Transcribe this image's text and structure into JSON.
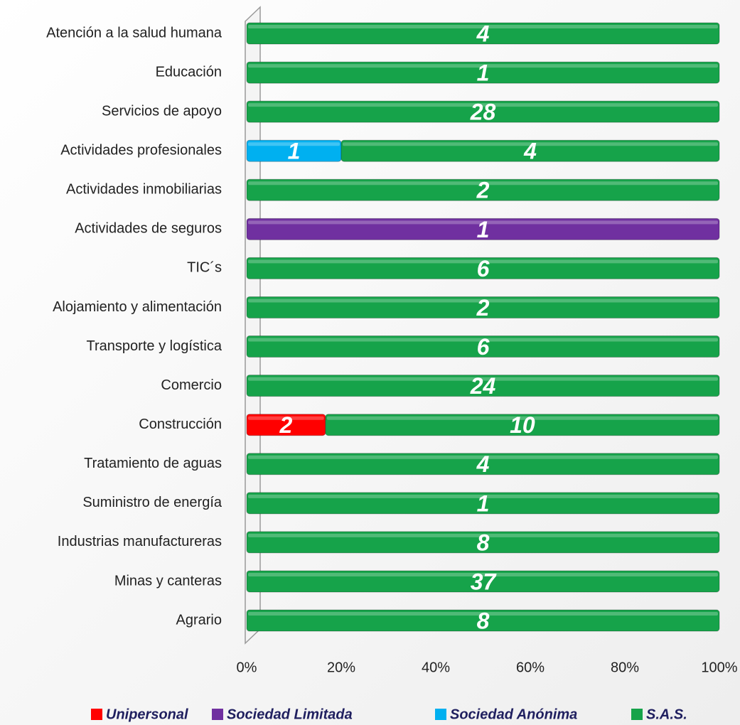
{
  "chart_data": {
    "type": "stacked_percent_bar",
    "categories": [
      "Atención a la salud humana",
      "Educación",
      "Servicios de apoyo",
      "Actividades profesionales",
      "Actividades inmobiliarias",
      "Actividades de seguros",
      "TIC´s",
      "Alojamiento y alimentación",
      "Transporte y logística",
      "Comercio",
      "Construcción",
      "Tratamiento de aguas",
      "Suministro de energía",
      "Industrias manufactureras",
      "Minas y canteras",
      "Agrario"
    ],
    "series": [
      {
        "name": "Unipersonal",
        "color": "#ff0000",
        "values": [
          null,
          null,
          null,
          null,
          null,
          null,
          null,
          null,
          null,
          null,
          2,
          null,
          null,
          null,
          null,
          null
        ]
      },
      {
        "name": "Sociedad Limitada",
        "color": "#7030a0",
        "values": [
          null,
          null,
          null,
          null,
          null,
          1,
          null,
          null,
          null,
          null,
          null,
          null,
          null,
          null,
          null,
          null
        ]
      },
      {
        "name": "Sociedad Anónima",
        "color": "#00b0f0",
        "values": [
          null,
          null,
          null,
          1,
          null,
          null,
          null,
          null,
          null,
          null,
          null,
          null,
          null,
          null,
          null,
          null
        ]
      },
      {
        "name": "S.A.S.",
        "color": "#16a34a",
        "values": [
          4,
          1,
          28,
          4,
          2,
          null,
          6,
          2,
          6,
          24,
          10,
          4,
          1,
          8,
          37,
          8
        ]
      }
    ],
    "xlim": [
      0,
      100
    ],
    "xticks": [
      {
        "value": 0,
        "label": "0%"
      },
      {
        "value": 20,
        "label": "20%"
      },
      {
        "value": 40,
        "label": "40%"
      },
      {
        "value": 60,
        "label": "60%"
      },
      {
        "value": 80,
        "label": "80%"
      },
      {
        "value": 100,
        "label": "100%"
      }
    ],
    "legend": "bottom"
  }
}
